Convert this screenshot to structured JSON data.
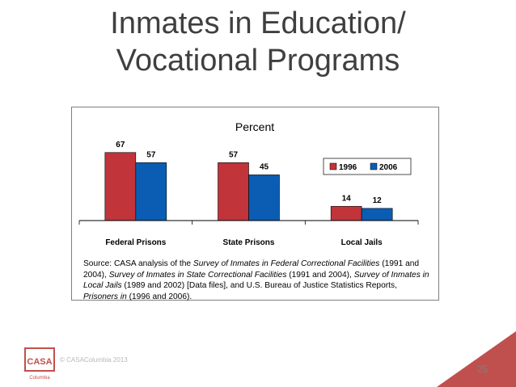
{
  "slide": {
    "title_line1": "Inmates in Education/",
    "title_line2": "Vocational Programs",
    "copyright": "© CASAColumbia 2013",
    "page_number": "25",
    "logo_text": "CASA",
    "logo_subtext": "Columbia",
    "accent_color": "#c0504d"
  },
  "chart_data": {
    "type": "bar",
    "title": "Percent",
    "categories": [
      "Federal Prisons",
      "State Prisons",
      "Local Jails"
    ],
    "series": [
      {
        "name": "1996",
        "values": [
          67,
          57,
          14
        ],
        "color": "#c0343a"
      },
      {
        "name": "2006",
        "values": [
          57,
          45,
          12
        ],
        "color": "#0a5db3"
      }
    ],
    "data_labels": [
      "67",
      "57",
      "57",
      "45",
      "14",
      "12"
    ],
    "ylim": [
      0,
      70
    ],
    "grid": false,
    "legend_position": "top-right"
  },
  "source": {
    "p1": "Source: CASA analysis of the ",
    "i1": "Survey of Inmates in Federal Correctional Facilities",
    "p2": " (1991 and 2004), ",
    "i2": "Survey of Inmates in State Correctional Facilities",
    "p3": " (1991 and 2004), ",
    "i3": "Survey of Inmates in Local Jails",
    "p4": " (1989 and 2002) [Data files], and U.S. Bureau of Justice Statistics Reports, ",
    "i4": "Prisoners in",
    "p5": " (1996 and 2006)."
  }
}
